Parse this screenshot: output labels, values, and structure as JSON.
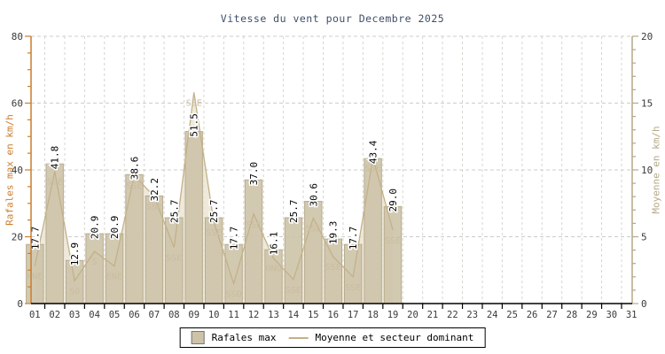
{
  "chart_data": {
    "type": "bar+line",
    "title": "Vitesse du vent pour Decembre 2025",
    "x_categories": [
      "01",
      "02",
      "03",
      "04",
      "05",
      "06",
      "07",
      "08",
      "09",
      "10",
      "11",
      "12",
      "13",
      "14",
      "15",
      "16",
      "17",
      "18",
      "19",
      "20",
      "21",
      "22",
      "23",
      "24",
      "25",
      "26",
      "27",
      "28",
      "29",
      "30",
      "31"
    ],
    "series": [
      {
        "name": "Rafales max",
        "type": "bar",
        "axis": "left",
        "values": [
          17.7,
          41.8,
          12.9,
          20.9,
          20.9,
          38.6,
          32.2,
          25.7,
          51.5,
          25.7,
          17.7,
          37.0,
          16.1,
          25.7,
          30.6,
          19.3,
          17.7,
          43.4,
          29.0,
          null,
          null,
          null,
          null,
          null,
          null,
          null,
          null,
          null,
          null,
          null,
          null
        ]
      },
      {
        "name": "Moyenne et secteur dominant",
        "type": "line-area",
        "axis": "right",
        "values": [
          2.8,
          9.9,
          1.7,
          3.9,
          2.8,
          9.6,
          8.0,
          4.2,
          15.8,
          6.1,
          1.5,
          6.7,
          3.4,
          1.8,
          6.4,
          3.5,
          2.0,
          10.9,
          5.5,
          null,
          null,
          null,
          null,
          null,
          null,
          null,
          null,
          null,
          null,
          null,
          null
        ],
        "sectors": [
          "NNE",
          "SSE",
          "SO",
          "S",
          "ENE",
          "SSE",
          "SSE",
          "SSE",
          "SSE",
          "SSE",
          "SSO",
          "SSE",
          "ONO",
          "SSE",
          "SSE",
          "SSE",
          "SSE",
          "SSE",
          "SSE",
          null,
          null,
          null,
          null,
          null,
          null,
          null,
          null,
          null,
          null,
          null,
          null
        ]
      }
    ],
    "left_axis": {
      "label": "Rafales max en km/h",
      "min": 0,
      "max": 80,
      "ticks": [
        0,
        20,
        40,
        60,
        80
      ],
      "minor_step": 5,
      "color": "#c87e2f"
    },
    "right_axis": {
      "label": "Moyenne en km/h",
      "min": 0,
      "max": 20,
      "ticks": [
        0,
        5,
        10,
        15,
        20
      ],
      "minor_step": 1,
      "color": "#b5a988"
    },
    "legend": [
      {
        "swatch": "box",
        "label": "Rafales max"
      },
      {
        "swatch": "line",
        "label": "Moyenne et secteur dominant"
      }
    ],
    "colors": {
      "bar": "#cdc3a8",
      "bar_border": "#b8ac8e",
      "area": "#eae3d2",
      "line": "#c3b188",
      "sector_text": "#c9bd9f",
      "grid_h": "#cccccc",
      "grid_v": "#d6d6cf",
      "x_axis": "#000000",
      "tick_text": "#3a3a3a",
      "title_text": "#3f4e68",
      "value_text": "#000000"
    },
    "grid": true,
    "legend_position": "bottom-center"
  }
}
